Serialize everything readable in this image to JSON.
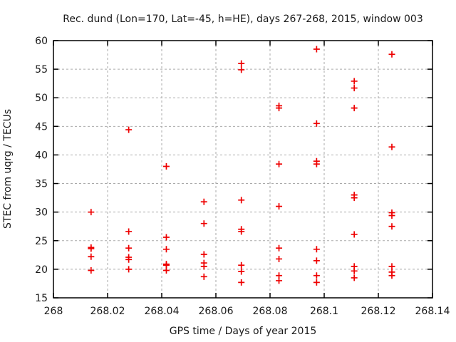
{
  "chart_data": {
    "type": "scatter",
    "title": "Rec. dund (Lon=170, Lat=-45, h=HE), days 267-268, 2015, window 003",
    "xlabel": "GPS time / Days of year 2015",
    "ylabel": "STEC from uqrg / TECUs",
    "xlim": [
      268,
      268.14
    ],
    "ylim": [
      15,
      60
    ],
    "xticks": [
      268,
      268.02,
      268.04,
      268.06,
      268.08,
      268.1,
      268.12,
      268.14
    ],
    "xtick_labels": [
      "268",
      "268.02",
      "268.04",
      "268.06",
      "268.08",
      "268.1",
      "268.12",
      "268.14"
    ],
    "yticks": [
      15,
      20,
      25,
      30,
      35,
      40,
      45,
      50,
      55,
      60
    ],
    "ytick_labels": [
      "15",
      "20",
      "25",
      "30",
      "35",
      "40",
      "45",
      "50",
      "55",
      "60"
    ],
    "grid": true,
    "legend": "none",
    "marker": "plus",
    "marker_color": "#ee0000",
    "grid_color": "#aaaaaa",
    "border_color": "#000000",
    "points": [
      [
        268.0139,
        30.0
      ],
      [
        268.0139,
        23.8
      ],
      [
        268.0139,
        23.6
      ],
      [
        268.0139,
        22.2
      ],
      [
        268.0139,
        19.8
      ],
      [
        268.0278,
        44.4
      ],
      [
        268.0278,
        26.6
      ],
      [
        268.0278,
        23.7
      ],
      [
        268.0278,
        22.1
      ],
      [
        268.0278,
        21.7
      ],
      [
        268.0278,
        20.0
      ],
      [
        268.0417,
        38.0
      ],
      [
        268.0417,
        25.6
      ],
      [
        268.0417,
        23.5
      ],
      [
        268.0417,
        20.9
      ],
      [
        268.0417,
        20.7
      ],
      [
        268.0417,
        19.8
      ],
      [
        268.0556,
        31.8
      ],
      [
        268.0556,
        28.0
      ],
      [
        268.0556,
        22.6
      ],
      [
        268.0556,
        21.1
      ],
      [
        268.0556,
        20.5
      ],
      [
        268.0556,
        18.7
      ],
      [
        268.0694,
        56.0
      ],
      [
        268.0694,
        54.9
      ],
      [
        268.0694,
        32.1
      ],
      [
        268.0694,
        27.0
      ],
      [
        268.0694,
        26.6
      ],
      [
        268.0694,
        20.7
      ],
      [
        268.0694,
        19.6
      ],
      [
        268.0694,
        17.7
      ],
      [
        268.0833,
        48.6
      ],
      [
        268.0833,
        48.2
      ],
      [
        268.0833,
        38.4
      ],
      [
        268.0833,
        31.0
      ],
      [
        268.0833,
        23.7
      ],
      [
        268.0833,
        21.8
      ],
      [
        268.0833,
        18.9
      ],
      [
        268.0833,
        18.0
      ],
      [
        268.0972,
        58.5
      ],
      [
        268.0972,
        45.5
      ],
      [
        268.0972,
        38.9
      ],
      [
        268.0972,
        38.4
      ],
      [
        268.0972,
        23.5
      ],
      [
        268.0972,
        21.5
      ],
      [
        268.0972,
        18.9
      ],
      [
        268.0972,
        17.7
      ],
      [
        268.1111,
        52.9
      ],
      [
        268.1111,
        51.7
      ],
      [
        268.1111,
        48.2
      ],
      [
        268.1111,
        33.0
      ],
      [
        268.1111,
        32.5
      ],
      [
        268.1111,
        26.1
      ],
      [
        268.1111,
        20.5
      ],
      [
        268.1111,
        19.7
      ],
      [
        268.1111,
        18.5
      ],
      [
        268.125,
        57.6
      ],
      [
        268.125,
        41.4
      ],
      [
        268.125,
        29.9
      ],
      [
        268.125,
        29.4
      ],
      [
        268.125,
        27.5
      ],
      [
        268.125,
        20.5
      ],
      [
        268.125,
        19.5
      ],
      [
        268.125,
        18.9
      ]
    ]
  }
}
